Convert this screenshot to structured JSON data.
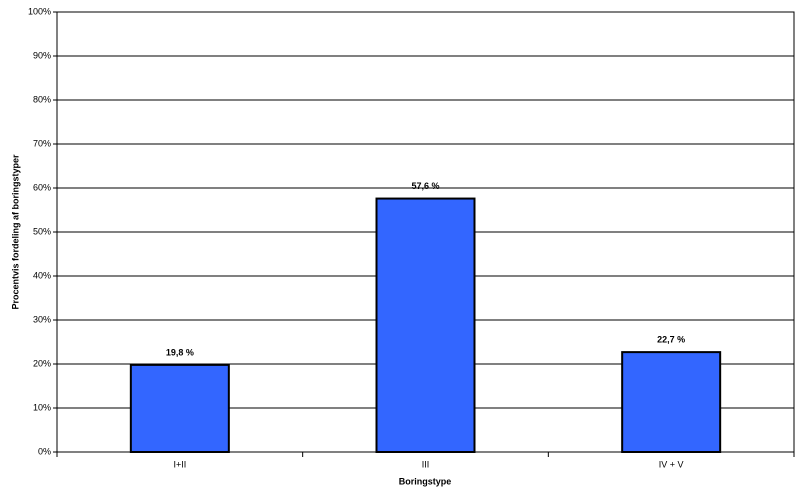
{
  "chart_data": {
    "type": "bar",
    "x_label": "Boringstype",
    "y_label": "Procentvis fordeling af boringstyper",
    "categories": [
      "I+II",
      "III",
      "IV + V"
    ],
    "values": [
      19.8,
      57.6,
      22.7
    ],
    "value_labels": [
      "19,8 %",
      "57,6 %",
      "22,7 %"
    ],
    "color": "#3366ff",
    "ylim": [
      0,
      100
    ],
    "yticks": [
      {
        "value": 0,
        "label": "0%"
      },
      {
        "value": 10,
        "label": "10%"
      },
      {
        "value": 20,
        "label": "20%"
      },
      {
        "value": 30,
        "label": "30%"
      },
      {
        "value": 40,
        "label": "40%"
      },
      {
        "value": 50,
        "label": "50%"
      },
      {
        "value": 60,
        "label": "60%"
      },
      {
        "value": 70,
        "label": "70%"
      },
      {
        "value": 80,
        "label": "80%"
      },
      {
        "value": 90,
        "label": "90%"
      },
      {
        "value": 100,
        "label": "100%"
      }
    ],
    "grid": true
  }
}
